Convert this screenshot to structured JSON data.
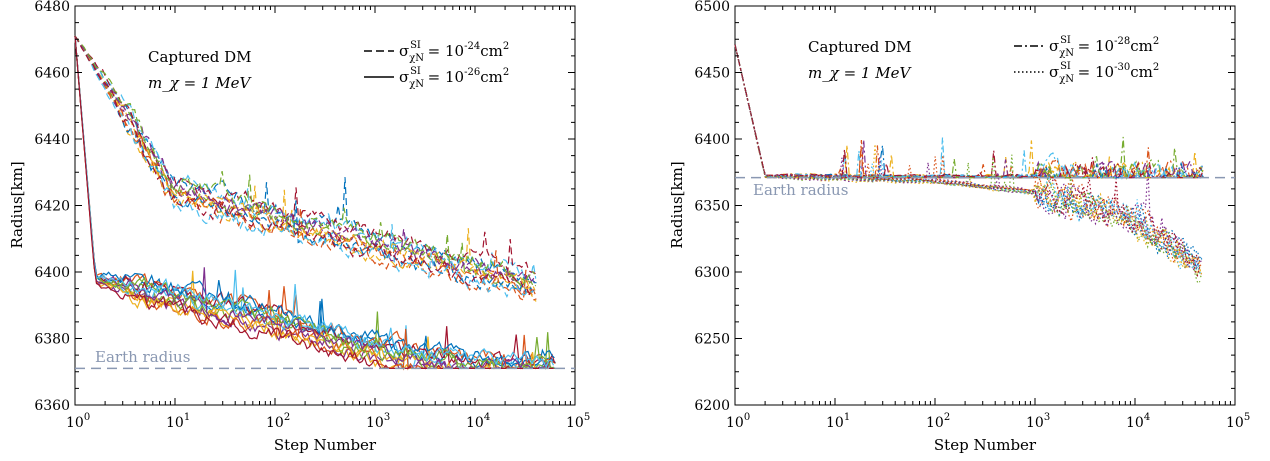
{
  "chart_data": [
    {
      "type": "line",
      "xscale": "log",
      "xlim": [
        1,
        100000
      ],
      "ylim": [
        6360,
        6480
      ],
      "xticks": [
        "10^0",
        "10^1",
        "10^2",
        "10^3",
        "10^4",
        "10^5"
      ],
      "xtick_mantissa": "10",
      "xtick_exponents": [
        "0",
        "1",
        "2",
        "3",
        "4",
        "5"
      ],
      "yticks": [
        "6360",
        "6380",
        "6400",
        "6420",
        "6440",
        "6460",
        "6480"
      ],
      "xlabel": "Step Number",
      "ylabel": "Radius[km]",
      "annotation_title": "Captured DM",
      "annotation_mass": "m_χ = 1 MeV",
      "legend": [
        {
          "style": "dashed",
          "label": "σ^SI_χN = 10^-24 cm^2",
          "exponent": "-24"
        },
        {
          "style": "solid",
          "label": "σ^SI_χN = 10^-26 cm^2",
          "exponent": "-26"
        }
      ],
      "legend_placement": "top-right",
      "reference_line": {
        "label": "Earth radius",
        "y": 6371,
        "color": "#8a98b2"
      },
      "series": [
        {
          "group": "dashed",
          "values": [
            [
              1,
              6471
            ],
            [
              10,
              6424
            ],
            [
              100,
              6416
            ],
            [
              1000,
              6408
            ],
            [
              10000,
              6400
            ],
            [
              50000,
              6395
            ]
          ]
        },
        {
          "group": "solid",
          "values": [
            [
              1,
              6471
            ],
            [
              1.6,
              6398
            ],
            [
              10,
              6392
            ],
            [
              100,
              6385
            ],
            [
              1000,
              6376
            ],
            [
              10000,
              6371
            ],
            [
              80000,
              6371
            ]
          ]
        }
      ]
    },
    {
      "type": "line",
      "xscale": "log",
      "xlim": [
        1,
        100000
      ],
      "ylim": [
        6200,
        6500
      ],
      "xticks": [
        "10^0",
        "10^1",
        "10^2",
        "10^3",
        "10^4",
        "10^5"
      ],
      "xtick_mantissa": "10",
      "xtick_exponents": [
        "0",
        "1",
        "2",
        "3",
        "4",
        "5"
      ],
      "yticks": [
        "6200",
        "6250",
        "6300",
        "6350",
        "6400",
        "6450",
        "6500"
      ],
      "xlabel": "Step Number",
      "ylabel": "Radius[km]",
      "annotation_title": "Captured DM",
      "annotation_mass": "m_χ = 1 MeV",
      "legend": [
        {
          "style": "dashdot",
          "label": "σ^SI_χN = 10^-28 cm^2",
          "exponent": "-28"
        },
        {
          "style": "dotted",
          "label": "σ^SI_χN = 10^-30 cm^2",
          "exponent": "-30"
        }
      ],
      "legend_placement": "top-right",
      "reference_line": {
        "label": "Earth radius",
        "y": 6371,
        "color": "#8a98b2"
      },
      "series": [
        {
          "group": "dashdot",
          "values": [
            [
              1,
              6471
            ],
            [
              2,
              6372
            ],
            [
              100,
              6371
            ],
            [
              1000,
              6371
            ],
            [
              80000,
              6370
            ]
          ]
        },
        {
          "group": "dotted",
          "values": [
            [
              1,
              6471
            ],
            [
              2,
              6372
            ],
            [
              100,
              6368
            ],
            [
              1000,
              6360
            ],
            [
              10000,
              6340
            ],
            [
              50000,
              6300
            ],
            [
              80000,
              6320
            ]
          ]
        }
      ]
    }
  ],
  "palette": [
    "#0072bd",
    "#d95319",
    "#edb120",
    "#7e2f8e",
    "#77ac30",
    "#4dbeee",
    "#a2142f"
  ]
}
